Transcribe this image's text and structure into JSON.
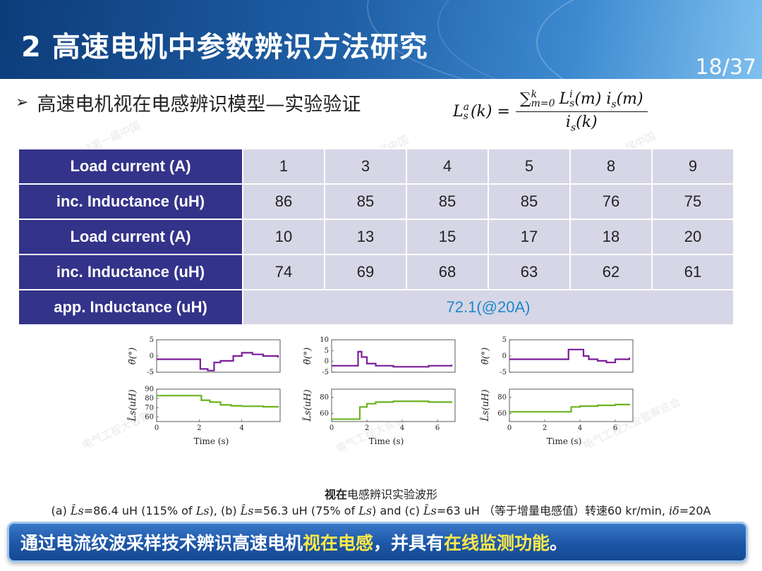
{
  "header": {
    "title": "2 高速电机中参数辨识方法研究",
    "page": "18/37"
  },
  "subtitle": {
    "bullet": "➢",
    "text": "高速电机视在电感辨识模型—实验验证"
  },
  "formula": {
    "lhs": "L",
    "lhs_sup": "a",
    "lhs_sub": "s",
    "lhs_arg": "(k) =",
    "num": "∑",
    "num_sup": "k",
    "num_sub": "m=0",
    "num_body": "L",
    "num_body_sup": "i",
    "num_body_sub": "s",
    "num_rest": "(m) i",
    "num_rest_sub": "s",
    "num_tail": "(m)",
    "den": "i",
    "den_sub": "s",
    "den_tail": "(k)"
  },
  "table": {
    "rows": [
      {
        "header": "Load current (A)",
        "cells": [
          "1",
          "3",
          "4",
          "5",
          "8",
          "9"
        ]
      },
      {
        "header": "inc. Inductance (uH)",
        "cells": [
          "86",
          "85",
          "85",
          "85",
          "76",
          "75"
        ]
      },
      {
        "header": "Load current (A)",
        "cells": [
          "10",
          "13",
          "15",
          "17",
          "18",
          "20"
        ]
      },
      {
        "header": "inc. Inductance (uH)",
        "cells": [
          "74",
          "69",
          "68",
          "63",
          "62",
          "61"
        ]
      }
    ],
    "app_row": {
      "header": "app. Inductance (uH)",
      "value": "72.1(@20A)"
    }
  },
  "chart_data": [
    {
      "type": "line",
      "xlabel": "Time (s)",
      "xticks": [
        "0",
        "2",
        "4"
      ],
      "xlim": [
        0,
        5.8
      ],
      "top": {
        "ylabel": "θ̃(°)",
        "ylim": [
          -5,
          5
        ],
        "yticks": [
          "5",
          "0",
          "-5"
        ],
        "series": [
          {
            "color": "#7a1f99",
            "x": [
              0,
              2.0,
              2.05,
              2.4,
              2.7,
              3.0,
              3.6,
              4.0,
              4.5,
              5.0,
              5.7
            ],
            "y": [
              -1,
              -1,
              -4,
              -4.5,
              -2,
              -1.5,
              0,
              1,
              0.5,
              0,
              -0.5
            ]
          }
        ]
      },
      "bottom": {
        "ylabel": "L̂s(uH)",
        "ylim": [
          55,
          90
        ],
        "yticks": [
          "90",
          "80",
          "70",
          "60"
        ],
        "series": [
          {
            "color": "#6ab422",
            "x": [
              0,
              2.0,
              2.1,
              2.5,
              3.0,
              3.5,
              4.0,
              5.0,
              5.7
            ],
            "y": [
              83,
              83,
              78,
              76,
              73,
              72,
              71.5,
              71,
              70
            ]
          }
        ]
      }
    },
    {
      "type": "line",
      "xlabel": "Time (s)",
      "xticks": [
        "0",
        "2",
        "4",
        "6"
      ],
      "xlim": [
        0,
        7
      ],
      "top": {
        "ylabel": "θ̃(°)",
        "ylim": [
          -5,
          10
        ],
        "yticks": [
          "10",
          "5",
          "0",
          "-5"
        ],
        "series": [
          {
            "color": "#7a1f99",
            "x": [
              0,
              1.4,
              1.5,
              1.7,
              2.0,
              2.5,
              3.5,
              4.5,
              5.5,
              6.8
            ],
            "y": [
              -2,
              -2,
              4.5,
              2,
              -1,
              -2,
              -2.5,
              -2.5,
              -2,
              -1.5
            ]
          }
        ]
      },
      "bottom": {
        "ylabel": "L̂s(uH)",
        "ylim": [
          50,
          90
        ],
        "yticks": [
          "80",
          "60"
        ],
        "series": [
          {
            "color": "#6ab422",
            "x": [
              0,
              1.4,
              1.6,
              2.0,
              2.5,
              3.5,
              4.5,
              5.5,
              6.8
            ],
            "y": [
              53,
              53,
              68,
              72,
              74,
              75,
              75,
              74,
              73
            ]
          }
        ]
      }
    },
    {
      "type": "line",
      "xlabel": "Time (s)",
      "xticks": [
        "0",
        "2",
        "4",
        "6"
      ],
      "xlim": [
        0,
        7
      ],
      "top": {
        "ylabel": "θ̃(°)",
        "ylim": [
          -5,
          5
        ],
        "yticks": [
          "5",
          "0",
          "-5"
        ],
        "series": [
          {
            "color": "#7a1f99",
            "x": [
              0,
              3.3,
              3.35,
              4.0,
              4.2,
              4.5,
              5.0,
              5.5,
              6.0,
              6.8
            ],
            "y": [
              -1,
              -1,
              2,
              2,
              0,
              -1,
              -1.5,
              -2,
              -1,
              -0.5
            ]
          }
        ]
      },
      "bottom": {
        "ylabel": "L̂s(uH)",
        "ylim": [
          50,
          90
        ],
        "yticks": [
          "80",
          "60"
        ],
        "series": [
          {
            "color": "#6ab422",
            "x": [
              0,
              3.3,
              3.5,
              4.0,
              5.0,
              6.0,
              6.8
            ],
            "y": [
              62,
              62,
              68,
              69,
              70,
              71,
              72
            ]
          }
        ]
      }
    }
  ],
  "caption": {
    "line1_bold": "视在",
    "line1_rest": "电感辨识实验波形",
    "line2_a": "(a) ",
    "line2_a_m": "L̂s",
    "line2_a_t": "=86.4 uH (115% of ",
    "line2_a_m2": "Ls",
    "line2_a_t2": "), (b) ",
    "line2_b_m": "L̂s",
    "line2_b_t": "=56.3 uH (75% of ",
    "line2_b_m2": "Ls",
    "line2_b_t2": ") and (c) ",
    "line2_c_m": "L̂s",
    "line2_c_t": "=63 uH （等于增量电感值）转速60 kr/min, ",
    "line2_c_m2": "iδ",
    "line2_c_t2": "=20A"
  },
  "banner": {
    "p1": "通过电流纹波采样技术辨识高速电机",
    "p2": "视在电感",
    "p3": "，并具有",
    "p4": "在线监测功能",
    "p5": "。"
  },
  "watermark": {
    "line1": "2023第一届中国",
    "line2": "电气工程大会暨展览会"
  },
  "colors": {
    "table_header": "#33338a",
    "table_cell": "#d6d6e6",
    "highlight": "#1e88c8",
    "theta": "#7a1f99",
    "inductance": "#6ab422"
  }
}
